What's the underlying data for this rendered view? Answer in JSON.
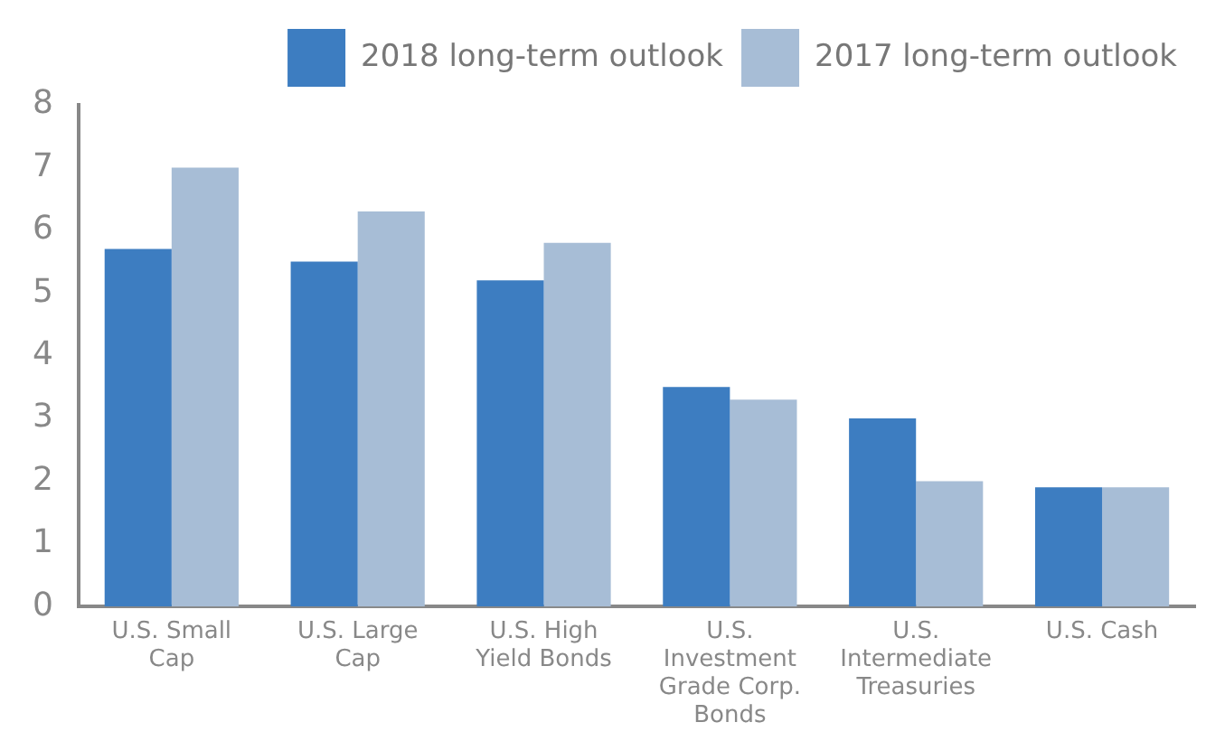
{
  "chart_data": {
    "type": "bar",
    "categories": [
      "U.S. Small Cap",
      "U.S. Large Cap",
      "U.S. High Yield Bonds",
      "U.S. Investment Grade Corp. Bonds",
      "U.S. Intermediate Treasuries",
      "U.S. Cash"
    ],
    "series": [
      {
        "name": "2018 long-term outlook",
        "color": "#3d7dc1",
        "values": [
          5.7,
          5.5,
          5.2,
          3.5,
          3.0,
          1.9
        ]
      },
      {
        "name": "2017 long-term outlook",
        "color": "#a7bdd6",
        "values": [
          7.0,
          6.3,
          5.8,
          3.3,
          2.0,
          1.9
        ]
      }
    ],
    "ylim": [
      0,
      8
    ],
    "yticks": [
      0,
      1,
      2,
      3,
      4,
      5,
      6,
      7,
      8
    ],
    "grid": false,
    "legend": "top right"
  }
}
